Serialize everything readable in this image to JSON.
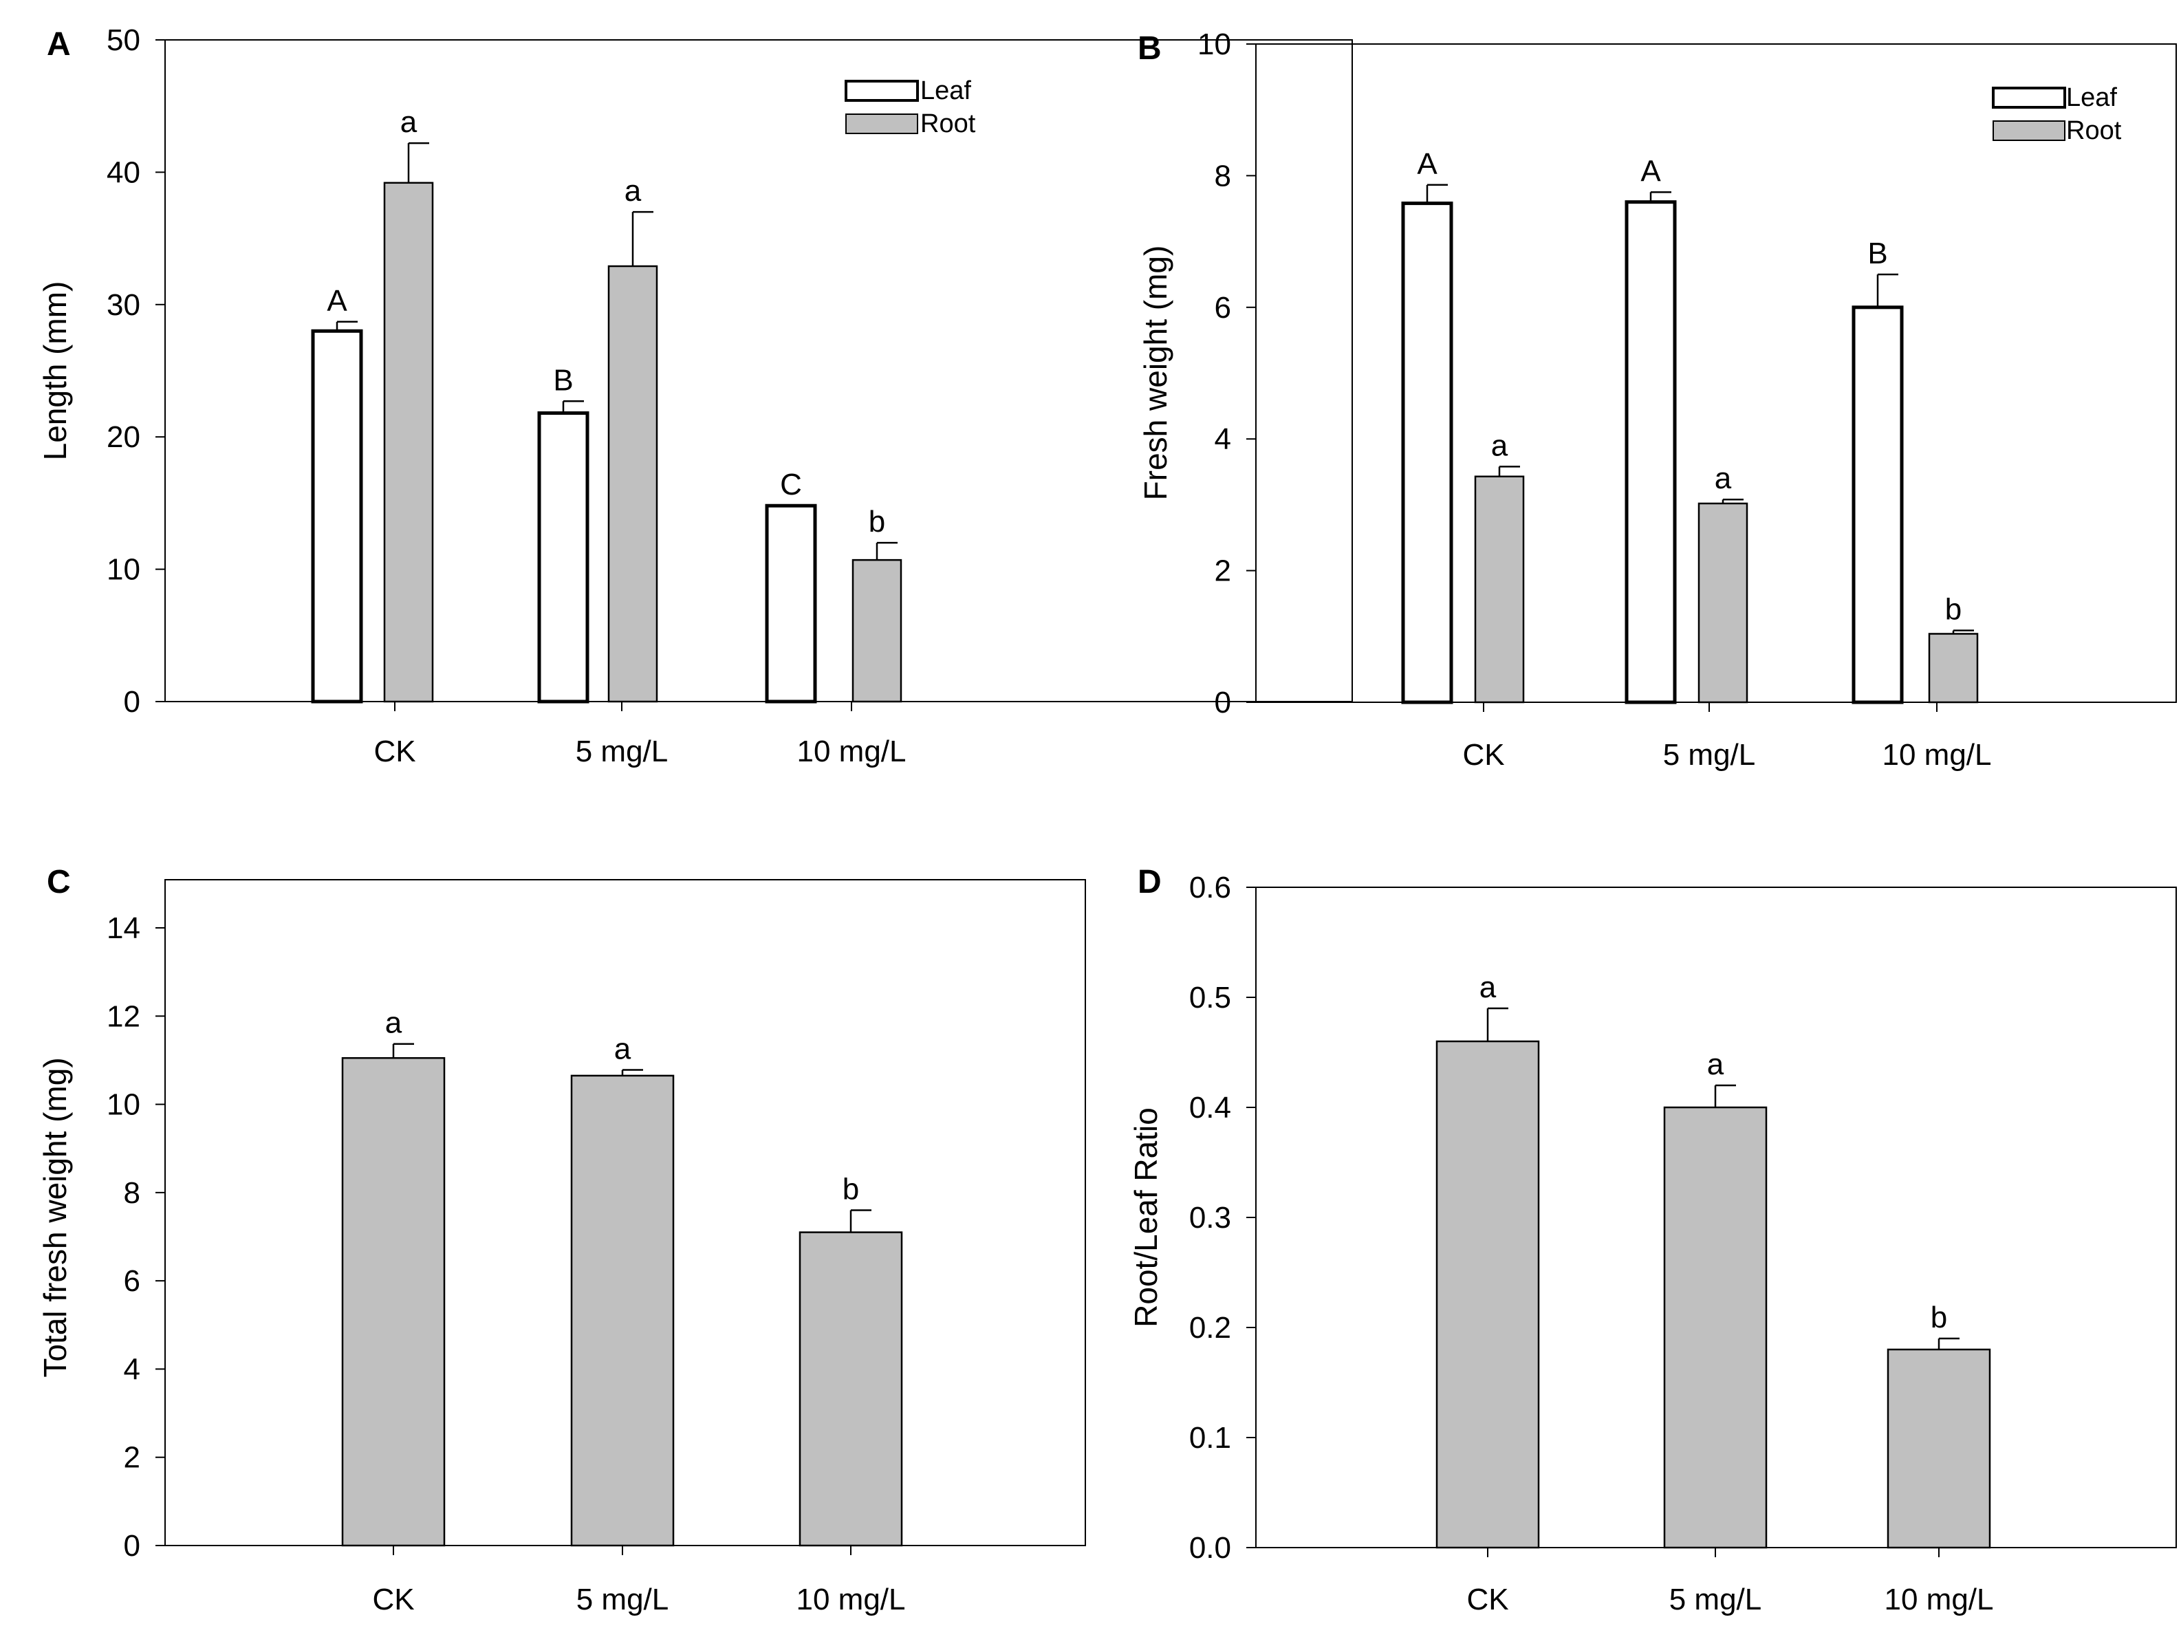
{
  "colors": {
    "leaf": "#ffffff",
    "root": "#c0c0c0",
    "bar_total": "#c0c0c0",
    "ink": "#000000"
  },
  "chart_data": [
    {
      "panel": "A",
      "type": "bar",
      "categories": [
        "CK",
        "5 mg/L",
        "10 mg/L"
      ],
      "xlabel": "",
      "ylabel": "Length (mm)",
      "ylim": [
        0,
        50
      ],
      "yticks": [
        "0",
        "10",
        "20",
        "30",
        "40",
        "50"
      ],
      "legend": {
        "position": "top-right",
        "entries": [
          "Leaf",
          "Root"
        ]
      },
      "series": [
        {
          "name": "Leaf",
          "color": "#ffffff",
          "values": [
            28,
            21.8,
            14.8
          ],
          "errors": [
            0.7,
            0.9,
            0
          ],
          "letters": [
            "A",
            "B",
            "C"
          ]
        },
        {
          "name": "Root",
          "color": "#c0c0c0",
          "values": [
            39.2,
            32.9,
            10.7
          ],
          "errors": [
            3.0,
            4.1,
            1.3
          ],
          "letters": [
            "a",
            "a",
            "b"
          ]
        }
      ]
    },
    {
      "panel": "B",
      "type": "bar",
      "categories": [
        "CK",
        "5 mg/L",
        "10 mg/L"
      ],
      "xlabel": "",
      "ylabel": "Fresh weight (mg)",
      "ylim": [
        0,
        10
      ],
      "yticks": [
        "0",
        "2",
        "4",
        "6",
        "8",
        "10"
      ],
      "legend": {
        "position": "top-right",
        "entries": [
          "Leaf",
          "Root"
        ]
      },
      "series": [
        {
          "name": "Leaf",
          "color": "#ffffff",
          "values": [
            7.58,
            7.6,
            6.0
          ],
          "errors": [
            0.28,
            0.15,
            0.5
          ],
          "letters": [
            "A",
            "A",
            "B"
          ]
        },
        {
          "name": "Root",
          "color": "#c0c0c0",
          "values": [
            3.43,
            3.02,
            1.04
          ],
          "errors": [
            0.15,
            0.06,
            0.05
          ],
          "letters": [
            "a",
            "a",
            "b"
          ]
        }
      ]
    },
    {
      "panel": "C",
      "type": "bar",
      "categories": [
        "CK",
        "5 mg/L",
        "10 mg/L"
      ],
      "xlabel": "",
      "ylabel": "Total fresh weight (mg)",
      "ylim": [
        0,
        15
      ],
      "yticks": [
        "0",
        "2",
        "4",
        "6",
        "8",
        "10",
        "12",
        "14"
      ],
      "series": [
        {
          "name": "Total",
          "color": "#c0c0c0",
          "values": [
            11.05,
            10.65,
            7.1
          ],
          "errors": [
            0.32,
            0.13,
            0.5
          ],
          "letters": [
            "a",
            "a",
            "b"
          ]
        }
      ]
    },
    {
      "panel": "D",
      "type": "bar",
      "categories": [
        "CK",
        "5 mg/L",
        "10 mg/L"
      ],
      "xlabel": "",
      "ylabel": "Root/Leaf Ratio",
      "ylim": [
        0,
        0.6
      ],
      "yticks": [
        "0.0",
        "0.1",
        "0.2",
        "0.3",
        "0.4",
        "0.5",
        "0.6"
      ],
      "series": [
        {
          "name": "Ratio",
          "color": "#c0c0c0",
          "values": [
            0.46,
            0.4,
            0.18
          ],
          "errors": [
            0.03,
            0.02,
            0.01
          ],
          "letters": [
            "a",
            "a",
            "b"
          ]
        }
      ]
    }
  ]
}
